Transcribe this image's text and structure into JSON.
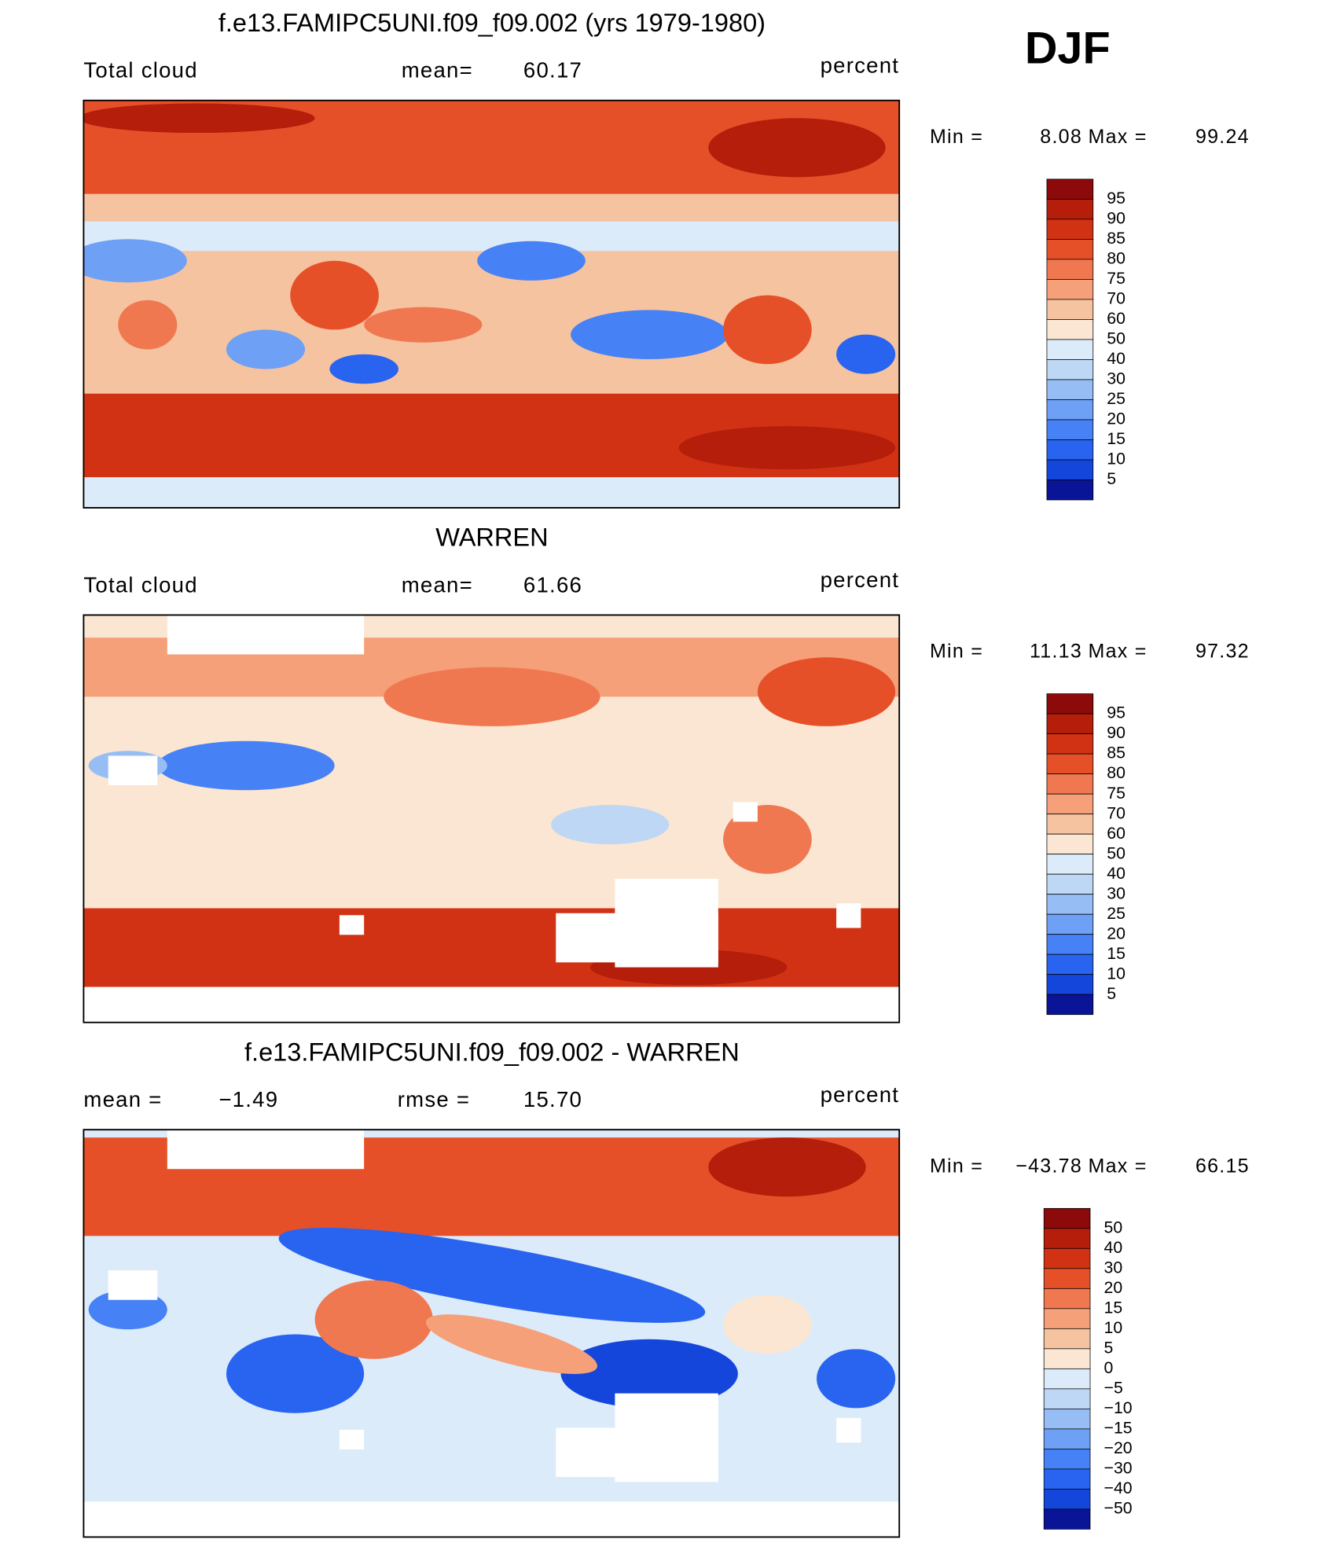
{
  "season": "DJF",
  "colorbar_colors": [
    "#8c0a0a",
    "#b41e0a",
    "#d23214",
    "#e65028",
    "#f07850",
    "#f5a078",
    "#f5c3a0",
    "#fae6d2",
    "#dcebfa",
    "#bed7f5",
    "#96bef5",
    "#6ea0f5",
    "#4682f5",
    "#2864f0",
    "#1446dc",
    "#0a1496"
  ],
  "panels": [
    {
      "title": "f.e13.FAMIPC5UNI.f09_f09.002 (yrs 1979-1980)",
      "left_label": "Total cloud",
      "stat_label": "mean=",
      "stat_value": "60.17",
      "units": "percent",
      "min_label": "Min =",
      "min": "8.08",
      "max_label": "Max =",
      "max": "99.24",
      "levels": [
        "95",
        "90",
        "85",
        "80",
        "75",
        "70",
        "60",
        "50",
        "40",
        "30",
        "25",
        "20",
        "15",
        "10",
        "5"
      ]
    },
    {
      "title": "WARREN",
      "left_label": "Total cloud",
      "stat_label": "mean=",
      "stat_value": "61.66",
      "units": "percent",
      "min_label": "Min =",
      "min": "11.13",
      "max_label": "Max =",
      "max": "97.32",
      "levels": [
        "95",
        "90",
        "85",
        "80",
        "75",
        "70",
        "60",
        "50",
        "40",
        "30",
        "25",
        "20",
        "15",
        "10",
        "5"
      ]
    },
    {
      "title": "f.e13.FAMIPC5UNI.f09_f09.002 - WARREN",
      "left_label": "mean =",
      "left_value": "−1.49",
      "stat_label": "rmse =",
      "stat_value": "15.70",
      "units": "percent",
      "min_label": "Min =",
      "min": "−43.78",
      "max_label": "Max =",
      "max": "66.15",
      "levels": [
        "50",
        "40",
        "30",
        "20",
        "15",
        "10",
        "5",
        "0",
        "−5",
        "−10",
        "−15",
        "−20",
        "−30",
        "−40",
        "−50"
      ]
    }
  ]
}
